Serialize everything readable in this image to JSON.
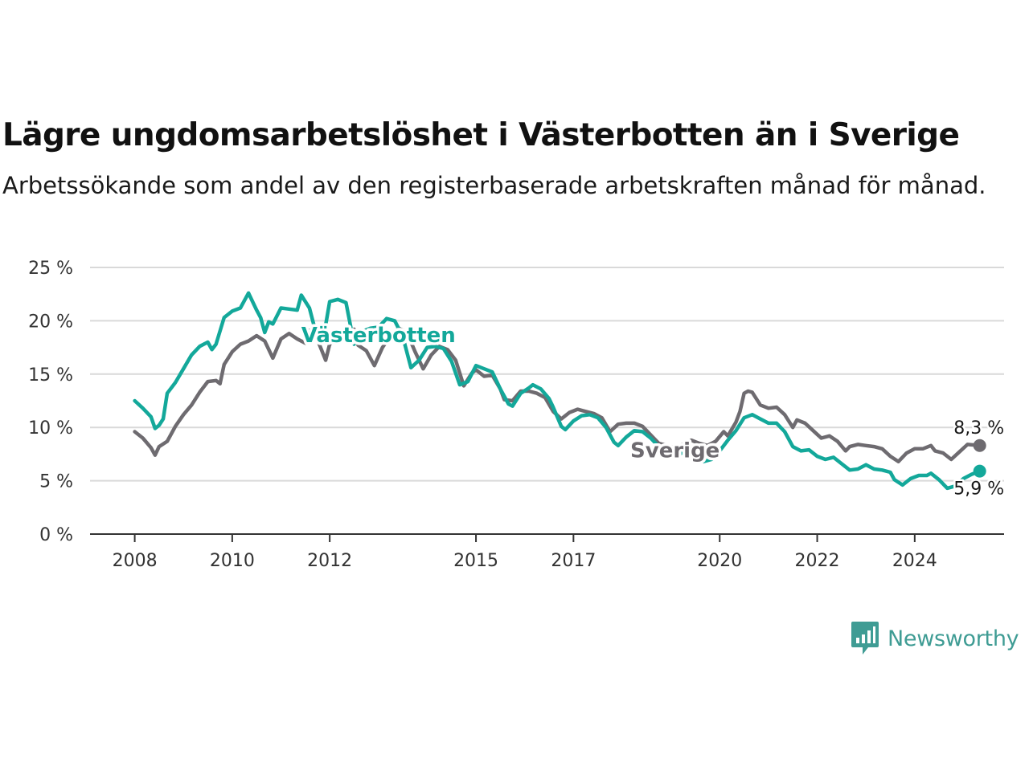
{
  "title": "Lägre ungdomsarbetslöshet i Västerbotten än i Sverige",
  "subtitle": "Arbetssökande som andel av den registerbaserade arbetskraften månad för månad.",
  "brand": "Newsworthy",
  "colors": {
    "vasterbotten": "#13a89a",
    "sverige": "#6e6b70",
    "grid": "#d9d9d9",
    "axis": "#333333",
    "brand": "#3f9c94"
  },
  "chart_data": {
    "type": "line",
    "x_ticks": [
      "2008",
      "2010",
      "2012",
      "2015",
      "2017",
      "2020",
      "2022",
      "2024"
    ],
    "y_ticks": [
      "0 %",
      "5 %",
      "10 %",
      "15 %",
      "20 %",
      "25 %"
    ],
    "ylim": [
      0,
      25
    ],
    "xlim": [
      "2007-02",
      "2025-11"
    ],
    "grid": true,
    "series": [
      {
        "name": "Västerbotten",
        "end_label": "5,9 %",
        "points": [
          [
            "2008-01",
            12.5
          ],
          [
            "2008-03",
            11.8
          ],
          [
            "2008-05",
            11.0
          ],
          [
            "2008-06",
            9.9
          ],
          [
            "2008-07",
            10.2
          ],
          [
            "2008-08",
            10.8
          ],
          [
            "2008-09",
            13.2
          ],
          [
            "2008-11",
            14.2
          ],
          [
            "2009-01",
            15.5
          ],
          [
            "2009-03",
            16.8
          ],
          [
            "2009-05",
            17.6
          ],
          [
            "2009-07",
            18.0
          ],
          [
            "2009-08",
            17.3
          ],
          [
            "2009-09",
            17.8
          ],
          [
            "2009-11",
            20.3
          ],
          [
            "2010-01",
            20.9
          ],
          [
            "2010-03",
            21.2
          ],
          [
            "2010-05",
            22.6
          ],
          [
            "2010-07",
            21.0
          ],
          [
            "2010-08",
            20.3
          ],
          [
            "2010-09",
            18.9
          ],
          [
            "2010-10",
            19.9
          ],
          [
            "2010-11",
            19.7
          ],
          [
            "2011-01",
            21.2
          ],
          [
            "2011-03",
            21.1
          ],
          [
            "2011-05",
            21.0
          ],
          [
            "2011-06",
            22.4
          ],
          [
            "2011-08",
            21.2
          ],
          [
            "2011-10",
            18.3
          ],
          [
            "2011-12",
            19.6
          ],
          [
            "2012-01",
            21.8
          ],
          [
            "2012-03",
            22.0
          ],
          [
            "2012-05",
            21.7
          ],
          [
            "2012-07",
            17.8
          ],
          [
            "2012-09",
            19.0
          ],
          [
            "2012-11",
            19.3
          ],
          [
            "2013-01",
            19.4
          ],
          [
            "2013-03",
            20.2
          ],
          [
            "2013-05",
            20.0
          ],
          [
            "2013-07",
            18.5
          ],
          [
            "2013-09",
            15.6
          ],
          [
            "2013-11",
            16.3
          ],
          [
            "2014-01",
            17.5
          ],
          [
            "2014-03",
            17.6
          ],
          [
            "2014-05",
            17.4
          ],
          [
            "2014-07",
            16.2
          ],
          [
            "2014-09",
            14.0
          ],
          [
            "2014-11",
            14.3
          ],
          [
            "2015-01",
            15.8
          ],
          [
            "2015-03",
            15.5
          ],
          [
            "2015-05",
            15.2
          ],
          [
            "2015-07",
            13.6
          ],
          [
            "2015-09",
            12.2
          ],
          [
            "2015-10",
            12.0
          ],
          [
            "2015-12",
            13.2
          ],
          [
            "2016-02",
            13.7
          ],
          [
            "2016-03",
            14.0
          ],
          [
            "2016-05",
            13.6
          ],
          [
            "2016-07",
            12.7
          ],
          [
            "2016-08",
            11.9
          ],
          [
            "2016-10",
            10.1
          ],
          [
            "2016-11",
            9.8
          ],
          [
            "2017-01",
            10.6
          ],
          [
            "2017-03",
            11.1
          ],
          [
            "2017-05",
            11.2
          ],
          [
            "2017-07",
            10.9
          ],
          [
            "2017-09",
            10.0
          ],
          [
            "2017-11",
            8.6
          ],
          [
            "2017-12",
            8.3
          ],
          [
            "2018-02",
            9.1
          ],
          [
            "2018-04",
            9.7
          ],
          [
            "2018-06",
            9.6
          ],
          [
            "2018-08",
            9.0
          ],
          [
            "2018-10",
            8.2
          ],
          [
            "2018-11",
            7.4
          ],
          [
            "2019-01",
            7.6
          ],
          [
            "2019-03",
            7.5
          ],
          [
            "2019-05",
            7.8
          ],
          [
            "2019-07",
            7.3
          ],
          [
            "2019-09",
            6.8
          ],
          [
            "2019-11",
            7.0
          ],
          [
            "2020-01",
            7.8
          ],
          [
            "2020-03",
            8.8
          ],
          [
            "2020-05",
            9.7
          ],
          [
            "2020-07",
            10.9
          ],
          [
            "2020-09",
            11.2
          ],
          [
            "2020-11",
            10.8
          ],
          [
            "2021-01",
            10.4
          ],
          [
            "2021-03",
            10.4
          ],
          [
            "2021-05",
            9.6
          ],
          [
            "2021-07",
            8.2
          ],
          [
            "2021-09",
            7.8
          ],
          [
            "2021-11",
            7.9
          ],
          [
            "2022-01",
            7.3
          ],
          [
            "2022-03",
            7.0
          ],
          [
            "2022-05",
            7.2
          ],
          [
            "2022-07",
            6.6
          ],
          [
            "2022-09",
            6.0
          ],
          [
            "2022-11",
            6.1
          ],
          [
            "2023-01",
            6.5
          ],
          [
            "2023-03",
            6.1
          ],
          [
            "2023-05",
            6.0
          ],
          [
            "2023-07",
            5.8
          ],
          [
            "2023-08",
            5.1
          ],
          [
            "2023-10",
            4.6
          ],
          [
            "2023-12",
            5.2
          ],
          [
            "2024-02",
            5.5
          ],
          [
            "2024-04",
            5.5
          ],
          [
            "2024-05",
            5.7
          ],
          [
            "2024-07",
            5.1
          ],
          [
            "2024-09",
            4.3
          ],
          [
            "2024-11",
            4.5
          ],
          [
            "2025-01",
            5.2
          ],
          [
            "2025-03",
            5.6
          ],
          [
            "2025-05",
            5.9
          ]
        ]
      },
      {
        "name": "Sverige",
        "end_label": "8,3 %",
        "points": [
          [
            "2008-01",
            9.6
          ],
          [
            "2008-03",
            9.0
          ],
          [
            "2008-05",
            8.1
          ],
          [
            "2008-06",
            7.4
          ],
          [
            "2008-07",
            8.2
          ],
          [
            "2008-09",
            8.7
          ],
          [
            "2008-11",
            10.1
          ],
          [
            "2009-01",
            11.2
          ],
          [
            "2009-03",
            12.1
          ],
          [
            "2009-05",
            13.3
          ],
          [
            "2009-07",
            14.3
          ],
          [
            "2009-09",
            14.4
          ],
          [
            "2009-10",
            14.1
          ],
          [
            "2009-11",
            15.9
          ],
          [
            "2010-01",
            17.1
          ],
          [
            "2010-03",
            17.8
          ],
          [
            "2010-05",
            18.1
          ],
          [
            "2010-07",
            18.6
          ],
          [
            "2010-09",
            18.1
          ],
          [
            "2010-11",
            16.5
          ],
          [
            "2011-01",
            18.3
          ],
          [
            "2011-03",
            18.8
          ],
          [
            "2011-05",
            18.3
          ],
          [
            "2011-07",
            17.9
          ],
          [
            "2011-08",
            19.1
          ],
          [
            "2011-10",
            18.2
          ],
          [
            "2011-12",
            16.3
          ],
          [
            "2012-01",
            17.8
          ],
          [
            "2012-03",
            18.4
          ],
          [
            "2012-05",
            18.9
          ],
          [
            "2012-07",
            19.2
          ],
          [
            "2012-08",
            17.7
          ],
          [
            "2012-10",
            17.2
          ],
          [
            "2012-12",
            15.8
          ],
          [
            "2013-02",
            17.5
          ],
          [
            "2013-04",
            18.6
          ],
          [
            "2013-06",
            19.3
          ],
          [
            "2013-08",
            18.9
          ],
          [
            "2013-10",
            17.1
          ],
          [
            "2013-12",
            15.5
          ],
          [
            "2014-02",
            16.8
          ],
          [
            "2014-04",
            17.6
          ],
          [
            "2014-06",
            17.3
          ],
          [
            "2014-08",
            16.3
          ],
          [
            "2014-10",
            13.9
          ],
          [
            "2014-12",
            15.1
          ],
          [
            "2015-01",
            15.4
          ],
          [
            "2015-03",
            14.8
          ],
          [
            "2015-05",
            14.9
          ],
          [
            "2015-07",
            13.6
          ],
          [
            "2015-08",
            12.6
          ],
          [
            "2015-10",
            12.5
          ],
          [
            "2015-12",
            13.4
          ],
          [
            "2016-02",
            13.4
          ],
          [
            "2016-04",
            13.2
          ],
          [
            "2016-06",
            12.8
          ],
          [
            "2016-08",
            11.5
          ],
          [
            "2016-10",
            10.8
          ],
          [
            "2016-12",
            11.4
          ],
          [
            "2017-02",
            11.7
          ],
          [
            "2017-04",
            11.5
          ],
          [
            "2017-06",
            11.3
          ],
          [
            "2017-08",
            10.9
          ],
          [
            "2017-10",
            9.6
          ],
          [
            "2017-12",
            10.3
          ],
          [
            "2018-02",
            10.4
          ],
          [
            "2018-04",
            10.4
          ],
          [
            "2018-06",
            10.1
          ],
          [
            "2018-08",
            9.3
          ],
          [
            "2018-10",
            8.5
          ],
          [
            "2018-12",
            8.3
          ],
          [
            "2019-02",
            8.1
          ],
          [
            "2019-04",
            8.4
          ],
          [
            "2019-06",
            8.8
          ],
          [
            "2019-08",
            8.5
          ],
          [
            "2019-10",
            8.3
          ],
          [
            "2019-12",
            8.7
          ],
          [
            "2020-02",
            9.6
          ],
          [
            "2020-03",
            9.2
          ],
          [
            "2020-05",
            10.5
          ],
          [
            "2020-06",
            11.5
          ],
          [
            "2020-07",
            13.2
          ],
          [
            "2020-08",
            13.4
          ],
          [
            "2020-09",
            13.3
          ],
          [
            "2020-11",
            12.1
          ],
          [
            "2021-01",
            11.8
          ],
          [
            "2021-03",
            11.9
          ],
          [
            "2021-05",
            11.2
          ],
          [
            "2021-07",
            10.0
          ],
          [
            "2021-08",
            10.7
          ],
          [
            "2021-10",
            10.4
          ],
          [
            "2021-12",
            9.7
          ],
          [
            "2022-02",
            9.0
          ],
          [
            "2022-04",
            9.2
          ],
          [
            "2022-06",
            8.7
          ],
          [
            "2022-08",
            7.8
          ],
          [
            "2022-09",
            8.2
          ],
          [
            "2022-11",
            8.4
          ],
          [
            "2023-01",
            8.3
          ],
          [
            "2023-03",
            8.2
          ],
          [
            "2023-05",
            8.0
          ],
          [
            "2023-07",
            7.3
          ],
          [
            "2023-09",
            6.8
          ],
          [
            "2023-11",
            7.6
          ],
          [
            "2024-01",
            8.0
          ],
          [
            "2024-03",
            8.0
          ],
          [
            "2024-05",
            8.3
          ],
          [
            "2024-06",
            7.8
          ],
          [
            "2024-08",
            7.6
          ],
          [
            "2024-10",
            7.0
          ],
          [
            "2024-12",
            7.7
          ],
          [
            "2025-02",
            8.4
          ],
          [
            "2025-05",
            8.3
          ]
        ]
      }
    ]
  }
}
